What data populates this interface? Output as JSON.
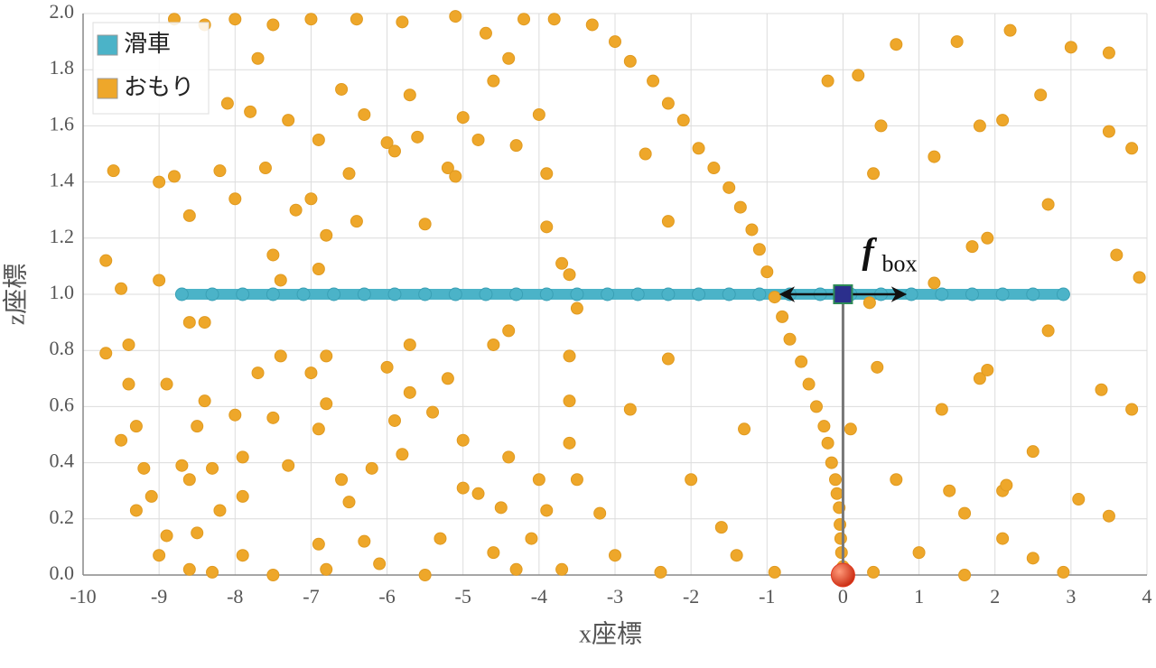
{
  "chart_data": {
    "type": "scatter",
    "x_label": "x座標",
    "y_label": "z座標",
    "xlim": [
      -10,
      4
    ],
    "xticks": [
      -10,
      -9,
      -8,
      -7,
      -6,
      -5,
      -4,
      -3,
      -2,
      -1,
      0,
      1,
      2,
      3,
      4
    ],
    "ylim": [
      0,
      2
    ],
    "yticks": [
      {
        "value": 0,
        "label": "0.0"
      },
      0.2,
      0.4,
      0.6,
      0.8,
      {
        "value": 1,
        "label": "1.0"
      },
      1.2,
      1.4,
      1.6,
      1.8,
      {
        "value": 2,
        "label": "2.0"
      }
    ],
    "grid": true,
    "legend": "top-left",
    "series": [
      {
        "name": "滑車",
        "color": "#4bb3c8",
        "line": true,
        "x": [
          -8.7,
          -8.3,
          -7.9,
          -7.5,
          -7.1,
          -6.7,
          -6.3,
          -5.9,
          -5.5,
          -5.1,
          -4.7,
          -4.3,
          -3.9,
          -3.5,
          -3.1,
          -2.7,
          -2.3,
          -1.9,
          -1.5,
          -1.1,
          -0.7,
          -0.3,
          0.1,
          0.5,
          0.9,
          1.3,
          1.7,
          2.1,
          2.5,
          2.9
        ],
        "values": [
          1,
          1,
          1,
          1,
          1,
          1,
          1,
          1,
          1,
          1,
          1,
          1,
          1,
          1,
          1,
          1,
          1,
          1,
          1,
          1,
          1,
          1,
          1,
          1,
          1,
          1,
          1,
          1,
          1,
          1
        ]
      },
      {
        "name": "おもり",
        "color": "#eea72a",
        "line": false,
        "x": [
          -4.2,
          -3.8,
          -3.3,
          -3.0,
          -2.8,
          -2.5,
          -2.3,
          -2.1,
          -1.9,
          -1.7,
          -1.5,
          -1.35,
          -1.2,
          -1.1,
          -1.0,
          -0.9,
          -0.8,
          -0.7,
          -0.55,
          -0.45,
          -0.35,
          -0.25,
          -0.2,
          -0.15,
          -0.1,
          -0.08,
          -0.05,
          -0.04,
          -0.03,
          -0.02,
          0,
          -9.7,
          -9.7,
          -9.6,
          -9.5,
          -9.4,
          -9.4,
          -9.3,
          -9.2,
          -9.1,
          -9.3,
          -9.0,
          -8.9,
          -9.0,
          -8.8,
          -8.6,
          -8.6,
          -8.4,
          -8.5,
          -8.4,
          -8.3,
          -8.6,
          -8.7,
          -8.2,
          -8.0,
          -8.1,
          -7.8,
          -7.7,
          -7.6,
          -7.5,
          -7.4,
          -7.3,
          -7.2,
          -7.0,
          -6.9,
          -6.9,
          -6.8,
          -6.6,
          -6.5,
          -6.4,
          -6.3,
          -6.0,
          -5.9,
          -5.7,
          -5.6,
          -5.5,
          -5.2,
          -5.0,
          -4.8,
          -4.6,
          -4.4,
          -4.3,
          -4.0,
          -3.9,
          -3.9,
          -3.7,
          -3.6,
          -2.6,
          -2.3,
          -0.2,
          0.2,
          0.4,
          0.5,
          0.7,
          1.2,
          1.5,
          1.8,
          2.1,
          2.2,
          2.6,
          3.0,
          3.5,
          3.5,
          3.8,
          3.9,
          3.6,
          2.7,
          1.7,
          1.9,
          1.2,
          0.45,
          0.35,
          0.1,
          0.7,
          1.3,
          1.8,
          1.9,
          2.1,
          2.15,
          2.5,
          2.7,
          3.1,
          3.4,
          3.8,
          3.5,
          1.4,
          1.6,
          1.0,
          2.1,
          2.5,
          2.9,
          1.6,
          0.4,
          -1.3,
          -2.0,
          -2.3,
          -2.8,
          -3.0,
          -3.2,
          -3.5,
          -3.6,
          -3.6,
          -3.6,
          -3.9,
          -4.0,
          -4.1,
          -4.4,
          -4.5,
          -4.8,
          -5.0,
          -5.0,
          -5.2,
          -5.4,
          -5.7,
          -5.8,
          -6.0,
          -6.2,
          -6.5,
          -6.6,
          -6.9,
          -7.0,
          -7.3,
          -7.5,
          -7.7,
          -7.9,
          -8.0,
          -8.2,
          -8.5,
          -1.6,
          -1.4,
          -0.9,
          -2.4,
          -3.7,
          -4.3,
          -5.5,
          -6.1,
          -6.8,
          -7.5,
          -8.3,
          -8.6,
          -7.9,
          -6.9,
          -6.3,
          -5.3,
          -4.6,
          -8.8,
          -8.4,
          -8.0,
          -7.5,
          -7.0,
          -6.4,
          -5.8,
          -5.1,
          -4.7,
          -9.0,
          -5.1,
          -3.5,
          -4.6,
          -4.4,
          -5.7,
          -5.9,
          -6.8,
          -6.8,
          -7.4,
          -7.9,
          -8.9,
          -9.5
        ],
        "values": [
          1.98,
          1.98,
          1.96,
          1.9,
          1.83,
          1.76,
          1.68,
          1.62,
          1.52,
          1.45,
          1.38,
          1.31,
          1.23,
          1.16,
          1.08,
          0.99,
          0.92,
          0.84,
          0.76,
          0.68,
          0.6,
          0.53,
          0.47,
          0.4,
          0.34,
          0.29,
          0.24,
          0.18,
          0.13,
          0.08,
          0.03,
          1.12,
          0.79,
          1.44,
          1.02,
          0.82,
          0.68,
          0.53,
          0.38,
          0.28,
          0.23,
          0.07,
          0.14,
          1.05,
          1.42,
          1.28,
          0.9,
          0.9,
          0.53,
          0.62,
          0.38,
          0.34,
          0.39,
          1.44,
          1.34,
          1.68,
          1.65,
          1.84,
          1.45,
          1.14,
          1.05,
          1.62,
          1.3,
          1.34,
          1.55,
          1.09,
          1.21,
          1.73,
          1.43,
          1.26,
          1.64,
          1.54,
          1.51,
          1.71,
          1.56,
          1.25,
          1.45,
          1.63,
          1.55,
          1.76,
          1.84,
          1.53,
          1.64,
          1.43,
          1.24,
          1.11,
          1.07,
          1.5,
          1.26,
          1.76,
          1.78,
          1.43,
          1.6,
          1.89,
          1.49,
          1.9,
          1.6,
          1.62,
          1.94,
          1.71,
          1.88,
          1.86,
          1.58,
          1.52,
          1.06,
          1.14,
          1.32,
          1.17,
          1.2,
          1.04,
          0.74,
          0.97,
          0.52,
          0.34,
          0.59,
          0.7,
          0.73,
          0.3,
          0.32,
          0.44,
          0.87,
          0.27,
          0.66,
          0.59,
          0.21,
          0.3,
          0.22,
          0.08,
          0.13,
          0.06,
          0.01,
          0,
          0.01,
          0.52,
          0.34,
          0.77,
          0.59,
          0.07,
          0.22,
          0.34,
          0.62,
          0.78,
          0.47,
          0.23,
          0.34,
          0.13,
          0.42,
          0.24,
          0.29,
          0.48,
          0.31,
          0.7,
          0.58,
          0.65,
          0.43,
          0.74,
          0.38,
          0.26,
          0.34,
          0.52,
          0.72,
          0.39,
          0.56,
          0.72,
          0.42,
          0.57,
          0.23,
          0.15,
          0.17,
          0.07,
          0.01,
          0.01,
          0.02,
          0.02,
          0,
          0.04,
          0.02,
          0,
          0.01,
          0.02,
          0.07,
          0.11,
          0.12,
          0.13,
          0.08,
          1.98,
          1.96,
          1.98,
          1.96,
          1.98,
          1.98,
          1.97,
          1.99,
          1.93,
          1.4,
          1.42,
          0.95,
          0.82,
          0.87,
          0.82,
          0.55,
          0.78,
          0.61,
          0.78,
          0.28,
          0.68,
          0.48
        ]
      }
    ],
    "markers": [
      {
        "x": 0,
        "y": 1,
        "shape": "square",
        "color": "#2b2f8c"
      },
      {
        "x": 0,
        "y": 0,
        "shape": "ball",
        "color": "#e0391e"
      }
    ],
    "arrow": {
      "x": [
        -0.8,
        0.8
      ],
      "y": 1
    },
    "annotation": {
      "text": "f",
      "sub": "box",
      "x": 0.25,
      "y": 1.14
    }
  }
}
